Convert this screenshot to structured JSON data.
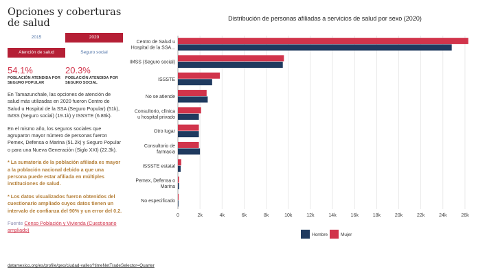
{
  "page": {
    "title": "Opciones y coberturas de salud",
    "year_tabs": [
      "2015",
      "2020"
    ],
    "active_year": "2020",
    "sub_tabs": [
      "Atención de salud",
      "Seguro social"
    ],
    "stats": [
      {
        "value": "54.1%",
        "label": "POBLACIÓN ATENDIDA POR SEGURO POPULAR"
      },
      {
        "value": "20.3%",
        "label": "POBLACIÓN ATENDIDA POR SEGURO SOCIAL"
      }
    ],
    "paragraph1": "En Tamazunchale, las opciones de atención de salud más utilizadas en 2020 fueron Centro de Salud u Hospital de la SSA (Seguro Popular) (51k), IMSS (Seguro social) (19.1k) y ISSSTE (6.86k).",
    "paragraph2": "En el mismo año, los seguros sociales que agruparon mayor número de personas fueron Pemex, Defensa o Marina (51.2k) y Seguro Popular o para una Nueva Generación (Siglo XXI) (22.3k).",
    "note1": "* La sumatoria de la población afiliada es mayor a la población nacional debido a que una persona puede estar afiliada en múltiples instituciones de salud.",
    "note2": "* Los datos visualizados fueron obtenidos del cuestionario ampliado cuyos datos tienen un intervalo de confianza del 90% y un error del 0.2.",
    "source_prefix": "Fuente",
    "source_link": "Censo Población y Vivienda (Cuestionario ampliado)",
    "url": "datamexico.org/es/profile/geo/ciudad-valles?timeNetTradeSelector=Quarter"
  },
  "chart_data": {
    "type": "bar",
    "orientation": "horizontal",
    "title": "Distribución de personas afiliadas a servicios de salud por sexo (2020)",
    "categories": [
      [
        "Centro de Salud u",
        "Hospital de la SSA..."
      ],
      [
        "IMSS (Seguro social)"
      ],
      [
        "ISSSTE"
      ],
      [
        "No se atiende"
      ],
      [
        "Consultorio, clínica",
        "u hospital privado"
      ],
      [
        "Otro lugar"
      ],
      [
        "Consultorio de",
        "farmacia"
      ],
      [
        "ISSSTE estatal"
      ],
      [
        "Pemex, Defensa o",
        "Marina"
      ],
      [
        "No especificado"
      ]
    ],
    "series": [
      {
        "name": "Mujer",
        "color": "#d1344b",
        "values": [
          26300,
          9600,
          3800,
          2600,
          2100,
          1900,
          1900,
          300,
          100,
          60
        ]
      },
      {
        "name": "Hombre",
        "color": "#1f3a5f",
        "values": [
          24800,
          9500,
          3100,
          2700,
          1900,
          1900,
          2000,
          250,
          100,
          50
        ]
      }
    ],
    "xlim": [
      0,
      26500
    ],
    "xticks": [
      0,
      2000,
      4000,
      6000,
      8000,
      10000,
      12000,
      14000,
      16000,
      18000,
      20000,
      22000,
      24000,
      26000
    ],
    "xtick_labels": [
      "0",
      "2k",
      "4k",
      "6k",
      "8k",
      "10k",
      "12k",
      "14k",
      "16k",
      "18k",
      "20k",
      "22k",
      "24k",
      "26k"
    ],
    "legend": [
      {
        "name": "Hombre",
        "color": "#1f3a5f"
      },
      {
        "name": "Mujer",
        "color": "#d1344b"
      }
    ]
  }
}
